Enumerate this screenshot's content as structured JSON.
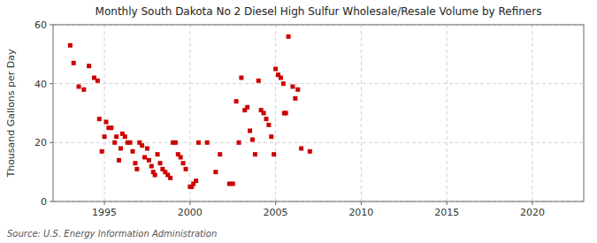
{
  "chart_data": {
    "type": "scatter",
    "title": "Monthly South Dakota No 2 Diesel High Sulfur Wholesale/Resale Volume by Refiners",
    "y_label": "Thousand Gallons per Day",
    "source": "Source: U.S. Energy Information Administration",
    "color": "#cc0000",
    "marker": "square",
    "grid": true,
    "xlim": [
      1992,
      2023
    ],
    "ylim": [
      0,
      60
    ],
    "xticks": [
      1995,
      2000,
      2005,
      2010,
      2015,
      2020
    ],
    "yticks": [
      0,
      20,
      40,
      60
    ],
    "x": [
      1993.0,
      1993.2,
      1993.5,
      1993.8,
      1994.1,
      1994.4,
      1994.6,
      1994.7,
      1994.85,
      1995.0,
      1995.1,
      1995.25,
      1995.4,
      1995.6,
      1995.7,
      1995.85,
      1995.95,
      1996.05,
      1996.2,
      1996.35,
      1996.5,
      1996.65,
      1996.8,
      1996.9,
      1997.05,
      1997.2,
      1997.35,
      1997.5,
      1997.6,
      1997.75,
      1997.85,
      1997.95,
      1998.1,
      1998.25,
      1998.4,
      1998.55,
      1998.7,
      1998.85,
      1999.0,
      1999.15,
      1999.3,
      1999.45,
      1999.6,
      1999.75,
      2000.0,
      2000.1,
      2000.2,
      2000.35,
      2000.5,
      2001.0,
      2001.5,
      2001.75,
      2002.3,
      2002.5,
      2002.7,
      2002.85,
      2003.0,
      2003.2,
      2003.35,
      2003.5,
      2003.65,
      2003.8,
      2004.0,
      2004.15,
      2004.3,
      2004.45,
      2004.6,
      2004.75,
      2004.9,
      2005.0,
      2005.15,
      2005.3,
      2005.45,
      2005.5,
      2005.6,
      2005.75,
      2006.0,
      2006.15,
      2006.3,
      2006.5,
      2007.0
    ],
    "values": [
      53,
      47,
      39,
      38,
      46,
      42,
      41,
      28,
      17,
      22,
      27,
      25,
      25,
      20,
      22,
      14,
      18,
      23,
      22,
      20,
      20,
      17,
      13,
      11,
      20,
      19,
      15,
      18,
      14,
      12,
      10,
      9,
      16,
      13,
      11,
      10,
      9,
      8,
      20,
      20,
      16,
      15,
      13,
      11,
      5,
      5,
      6,
      7,
      20,
      20,
      10,
      16,
      6,
      6,
      34,
      20,
      42,
      31,
      32,
      24,
      21,
      16,
      41,
      31,
      30,
      28,
      26,
      22,
      16,
      45,
      43,
      42,
      40,
      30,
      30,
      56,
      39,
      35,
      38,
      18,
      17
    ]
  }
}
